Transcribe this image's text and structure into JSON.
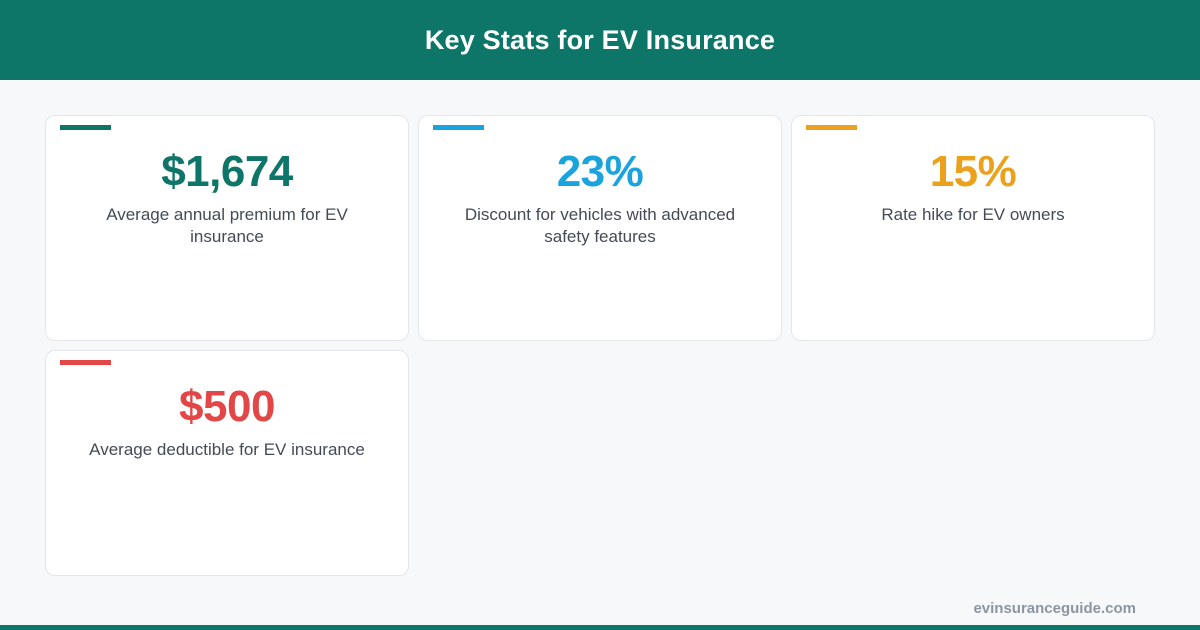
{
  "header": {
    "title": "Key Stats for EV Insurance"
  },
  "colors": {
    "brand": "#0e7569",
    "accent_blue": "#1aa3dc",
    "accent_orange": "#eba11c",
    "accent_red": "#e24646",
    "background": "#f7f8fa"
  },
  "stats": [
    {
      "value": "$1,674",
      "description": "Average annual premium for EV insurance",
      "color": "#0e7569"
    },
    {
      "value": "23%",
      "description": "Discount for vehicles with advanced safety features",
      "color": "#1aa3dc"
    },
    {
      "value": "15%",
      "description": "Rate hike for EV owners",
      "color": "#eba11c"
    },
    {
      "value": "$500",
      "description": "Average deductible for EV insurance",
      "color": "#e24646"
    }
  ],
  "footer": {
    "domain": "evinsuranceguide.com"
  }
}
